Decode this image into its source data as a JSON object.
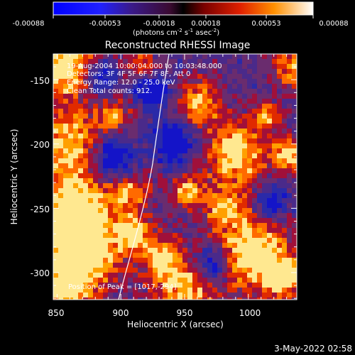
{
  "colorbar": {
    "ticks": [
      "-0.00088",
      "-0.00053",
      "-0.00018",
      "0.00018",
      "0.00053",
      "0.00088"
    ],
    "units_prefix": "(photons cm",
    "units_exp1": "-2",
    "units_mid": " s",
    "units_exp2": "-1",
    "units_mid2": " asec",
    "units_exp3": "-2",
    "units_suffix": ")"
  },
  "title": "Reconstructed RHESSI Image",
  "info": {
    "line1": "19-Aug-2004 10:00:04.000 to 10:03:48.000",
    "line2": "Detectors: 3F 4F 5F 6F 7F 8F, Att 0",
    "line3": "Energy Range: 12.0 - 25.0 keV",
    "line4": "Clean     Total counts: 912."
  },
  "peak_label": "Position of Peak = [1017,-294]",
  "axes": {
    "xlabel": "Heliocentric X (arcsec)",
    "ylabel": "Heliocentric Y (arcsec)",
    "x_ticks": [
      "850",
      "900",
      "950",
      "1000"
    ],
    "y_ticks": [
      "-150",
      "-200",
      "-250",
      "-300"
    ],
    "xlim": [
      847,
      1038
    ],
    "ylim": [
      -321,
      -130
    ]
  },
  "timestamp": "3-May-2022 02:58",
  "colors": {
    "background": "#000000",
    "low": "#0000ff",
    "mid": "#5a2a8a",
    "high": "#ff3300",
    "peak": "#ffffe0"
  }
}
